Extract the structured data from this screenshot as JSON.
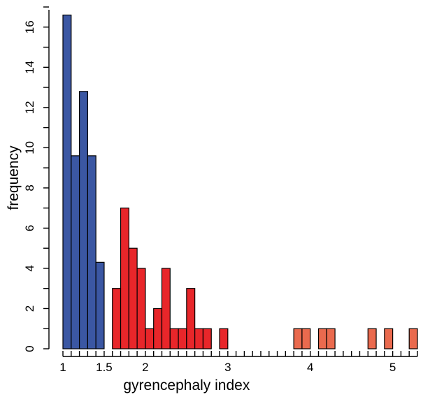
{
  "chart_data": {
    "type": "bar",
    "xlabel": "gyrencephaly index",
    "ylabel": "frequency",
    "xlim": [
      0.95,
      5.3
    ],
    "ylim": [
      0,
      17
    ],
    "bin_width": 0.1,
    "x_ticks": [
      1,
      1.5,
      2,
      3,
      4,
      5
    ],
    "x_tick_labels": [
      "1",
      "1.5",
      "2",
      "3",
      "4",
      "5"
    ],
    "y_ticks": [
      0,
      2,
      4,
      6,
      8,
      10,
      12,
      14,
      16
    ],
    "y_tick_labels": [
      "0",
      "2",
      "4",
      "6",
      "8",
      "10",
      "12",
      "14",
      "16"
    ],
    "colors": {
      "blue": "#3b57a3",
      "red": "#e8262a",
      "orange": "#ea6a4e"
    },
    "series": [
      {
        "color_key": "blue",
        "bars": [
          {
            "x0": 1.0,
            "x1": 1.1,
            "y": 16.6
          },
          {
            "x0": 1.1,
            "x1": 1.2,
            "y": 9.6
          },
          {
            "x0": 1.2,
            "x1": 1.3,
            "y": 12.8
          },
          {
            "x0": 1.3,
            "x1": 1.4,
            "y": 9.6
          },
          {
            "x0": 1.4,
            "x1": 1.5,
            "y": 4.3
          }
        ]
      },
      {
        "color_key": "red",
        "bars": [
          {
            "x0": 1.6,
            "x1": 1.7,
            "y": 3
          },
          {
            "x0": 1.7,
            "x1": 1.8,
            "y": 7
          },
          {
            "x0": 1.8,
            "x1": 1.9,
            "y": 5
          },
          {
            "x0": 1.9,
            "x1": 2.0,
            "y": 4
          },
          {
            "x0": 2.0,
            "x1": 2.1,
            "y": 1
          },
          {
            "x0": 2.1,
            "x1": 2.2,
            "y": 2
          },
          {
            "x0": 2.2,
            "x1": 2.3,
            "y": 4
          },
          {
            "x0": 2.3,
            "x1": 2.4,
            "y": 1
          },
          {
            "x0": 2.4,
            "x1": 2.5,
            "y": 1
          },
          {
            "x0": 2.5,
            "x1": 2.6,
            "y": 3
          },
          {
            "x0": 2.6,
            "x1": 2.7,
            "y": 1
          },
          {
            "x0": 2.7,
            "x1": 2.8,
            "y": 1
          },
          {
            "x0": 2.9,
            "x1": 3.0,
            "y": 1
          }
        ]
      },
      {
        "color_key": "orange",
        "bars": [
          {
            "x0": 3.8,
            "x1": 3.9,
            "y": 1
          },
          {
            "x0": 3.9,
            "x1": 4.0,
            "y": 1
          },
          {
            "x0": 4.1,
            "x1": 4.2,
            "y": 1
          },
          {
            "x0": 4.2,
            "x1": 4.3,
            "y": 1
          },
          {
            "x0": 4.7,
            "x1": 4.8,
            "y": 1
          },
          {
            "x0": 4.9,
            "x1": 5.0,
            "y": 1
          },
          {
            "x0": 5.2,
            "x1": 5.3,
            "y": 1
          }
        ]
      }
    ]
  }
}
